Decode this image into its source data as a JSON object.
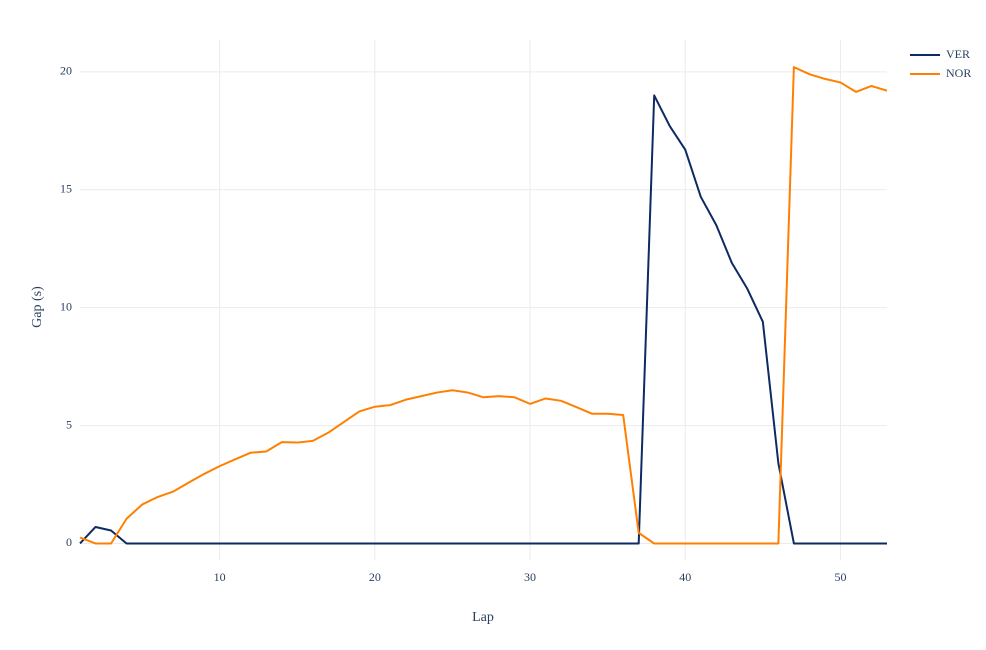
{
  "chart_data": {
    "type": "line",
    "xlabel": "Lap",
    "ylabel": "Gap (s)",
    "x": [
      1,
      2,
      3,
      4,
      5,
      6,
      7,
      8,
      9,
      10,
      11,
      12,
      13,
      14,
      15,
      16,
      17,
      18,
      19,
      20,
      21,
      22,
      23,
      24,
      25,
      26,
      27,
      28,
      29,
      30,
      31,
      32,
      33,
      34,
      35,
      36,
      37,
      38,
      39,
      40,
      41,
      42,
      43,
      44,
      45,
      46,
      47,
      48,
      49,
      50,
      51,
      52,
      53
    ],
    "series": [
      {
        "name": "VER",
        "color": "#0d2a63",
        "values": [
          0,
          0.7,
          0.55,
          0,
          0,
          0,
          0,
          0,
          0,
          0,
          0,
          0,
          0,
          0,
          0,
          0,
          0,
          0,
          0,
          0,
          0,
          0,
          0,
          0,
          0,
          0,
          0,
          0,
          0,
          0,
          0,
          0,
          0,
          0,
          0,
          0,
          0,
          19.0,
          17.7,
          16.7,
          14.7,
          13.5,
          11.9,
          10.8,
          9.4,
          3.4,
          0,
          0,
          0,
          0,
          0,
          0,
          0
        ]
      },
      {
        "name": "NOR",
        "color": "#ff8000",
        "values": [
          0.25,
          0,
          0,
          1.05,
          1.65,
          1.97,
          2.2,
          2.58,
          2.95,
          3.28,
          3.57,
          3.85,
          3.9,
          4.3,
          4.28,
          4.35,
          4.7,
          5.15,
          5.6,
          5.8,
          5.87,
          6.1,
          6.25,
          6.4,
          6.5,
          6.4,
          6.2,
          6.25,
          6.2,
          5.92,
          6.15,
          6.05,
          5.78,
          5.5,
          5.5,
          5.45,
          0.45,
          0,
          0,
          0,
          0,
          0,
          0,
          0,
          0,
          0,
          20.2,
          19.9,
          19.7,
          19.55,
          19.15,
          19.4,
          19.2
        ]
      }
    ],
    "xlim": [
      1,
      53
    ],
    "ylim": [
      -0.7,
      21.35
    ],
    "xticks": [
      10,
      20,
      30,
      40,
      50
    ],
    "yticks": [
      0,
      5,
      10,
      15,
      20
    ],
    "grid": true,
    "legend": "top-right"
  }
}
